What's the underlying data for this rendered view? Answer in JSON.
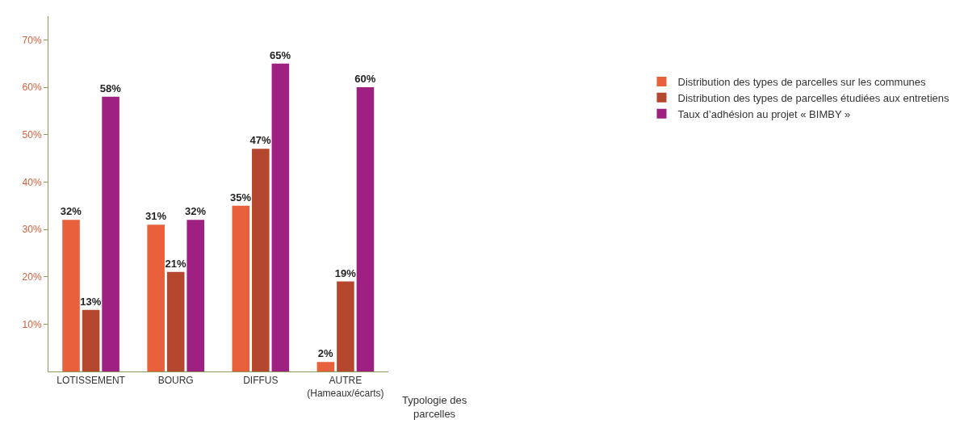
{
  "chart_data": {
    "type": "bar",
    "xlabel": "Typologie des\nparcelles",
    "categories": [
      "LOTISSEMENT",
      "BOURG",
      "DIFFUS",
      "AUTRE\n(Hameaux/écarts)"
    ],
    "series": [
      {
        "name": "Distribution des types de parcelles sur les communes",
        "color": "#e8603c",
        "values": [
          32,
          31,
          35,
          2
        ],
        "value_labels": [
          "32%",
          "31%",
          "35%",
          "2%"
        ]
      },
      {
        "name": "Distribution des types de parcelles étudiées aux entretiens",
        "color": "#b5472f",
        "values": [
          13,
          21,
          47,
          19
        ],
        "value_labels": [
          "13%",
          "21%",
          "47%",
          "19%"
        ]
      },
      {
        "name": "Taux d’adhésion au projet « BIMBY »",
        "color": "#9e2080",
        "values": [
          58,
          32,
          65,
          60
        ],
        "value_labels": [
          "58%",
          "32%",
          "65%",
          "60%"
        ]
      }
    ],
    "ylim": [
      0,
      75
    ],
    "yticks": [
      {
        "value": 10,
        "label": "10%"
      },
      {
        "value": 20,
        "label": "20%"
      },
      {
        "value": 30,
        "label": "30%"
      },
      {
        "value": 40,
        "label": "40%"
      },
      {
        "value": 50,
        "label": "50%"
      },
      {
        "value": 60,
        "label": "60%"
      },
      {
        "value": 70,
        "label": "70%"
      }
    ],
    "legend": "right"
  }
}
